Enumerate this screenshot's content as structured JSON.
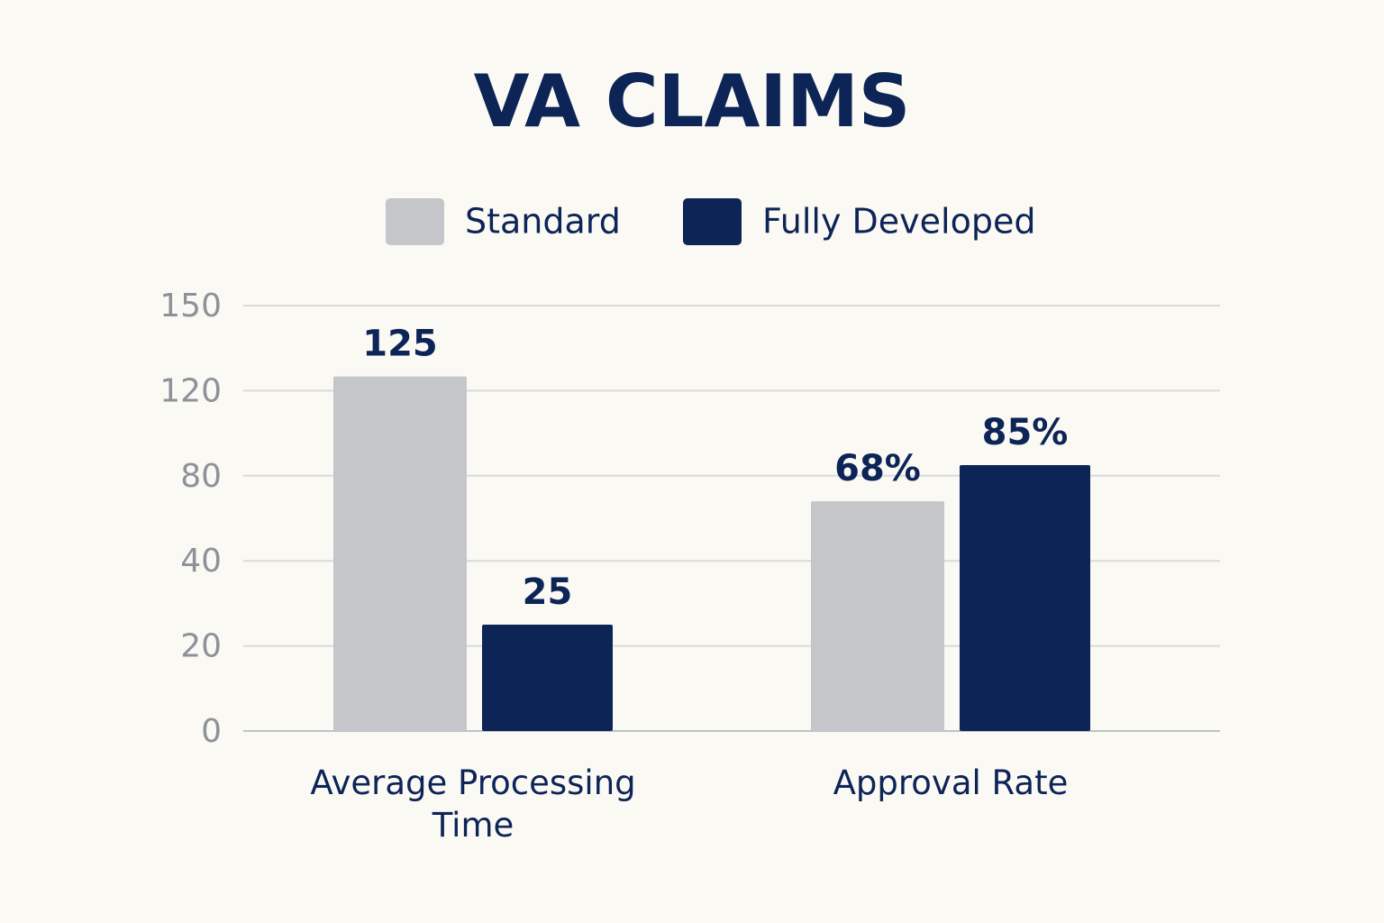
{
  "chart_data": {
    "type": "bar",
    "title": "VA CLAIMS",
    "categories": [
      "Average Processing Time",
      "Approval Rate"
    ],
    "series": [
      {
        "name": "Standard",
        "color": "#c5c6ca",
        "values": [
          125,
          68
        ],
        "value_labels": [
          "125",
          "68%"
        ]
      },
      {
        "name": "Fully Developed",
        "color": "#0d2457",
        "values": [
          25,
          85
        ],
        "value_labels": [
          "25",
          "85%"
        ]
      }
    ],
    "ylim": [
      0,
      150
    ],
    "yticks": [
      0,
      20,
      40,
      80,
      120,
      150
    ],
    "grid": true,
    "legend": "top"
  }
}
